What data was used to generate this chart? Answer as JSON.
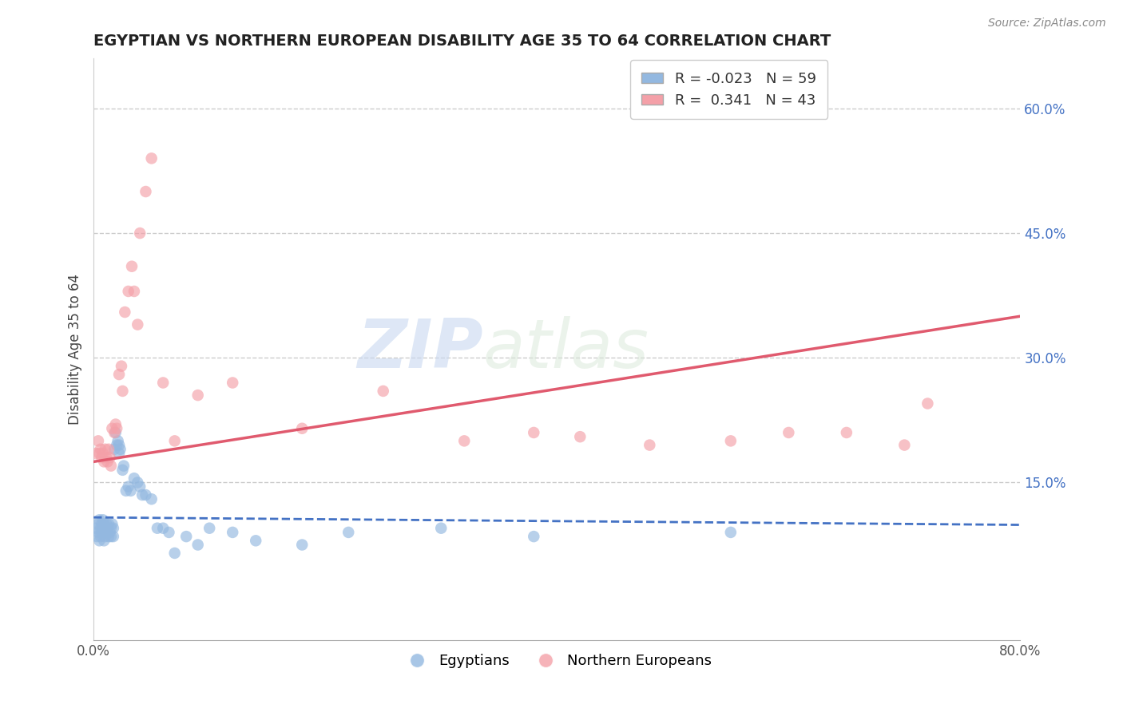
{
  "title": "EGYPTIAN VS NORTHERN EUROPEAN DISABILITY AGE 35 TO 64 CORRELATION CHART",
  "source": "Source: ZipAtlas.com",
  "xlabel": "",
  "ylabel": "Disability Age 35 to 64",
  "xlim": [
    0.0,
    0.8
  ],
  "ylim": [
    -0.04,
    0.66
  ],
  "xticks": [
    0.0,
    0.8
  ],
  "xticklabels": [
    "0.0%",
    "80.0%"
  ],
  "yticks_right": [
    0.15,
    0.3,
    0.45,
    0.6
  ],
  "ytick_labels_right": [
    "15.0%",
    "30.0%",
    "45.0%",
    "60.0%"
  ],
  "blue_color": "#93b8e0",
  "pink_color": "#f4a0a8",
  "blue_line_color": "#4472c4",
  "pink_line_color": "#e05a6e",
  "watermark_text": "ZIP",
  "watermark_text2": "atlas",
  "blue_scatter_x": [
    0.002,
    0.003,
    0.004,
    0.004,
    0.005,
    0.005,
    0.006,
    0.006,
    0.007,
    0.007,
    0.008,
    0.008,
    0.009,
    0.009,
    0.01,
    0.01,
    0.011,
    0.012,
    0.012,
    0.013,
    0.013,
    0.014,
    0.015,
    0.015,
    0.016,
    0.017,
    0.017,
    0.018,
    0.019,
    0.02,
    0.021,
    0.022,
    0.022,
    0.023,
    0.025,
    0.026,
    0.028,
    0.03,
    0.032,
    0.035,
    0.038,
    0.04,
    0.042,
    0.045,
    0.05,
    0.055,
    0.06,
    0.065,
    0.07,
    0.08,
    0.09,
    0.1,
    0.12,
    0.14,
    0.18,
    0.22,
    0.3,
    0.38,
    0.55
  ],
  "blue_scatter_y": [
    0.095,
    0.085,
    0.09,
    0.1,
    0.105,
    0.08,
    0.095,
    0.085,
    0.1,
    0.09,
    0.105,
    0.095,
    0.1,
    0.08,
    0.095,
    0.085,
    0.1,
    0.09,
    0.095,
    0.085,
    0.1,
    0.09,
    0.095,
    0.085,
    0.1,
    0.085,
    0.095,
    0.19,
    0.21,
    0.195,
    0.2,
    0.195,
    0.185,
    0.19,
    0.165,
    0.17,
    0.14,
    0.145,
    0.14,
    0.155,
    0.15,
    0.145,
    0.135,
    0.135,
    0.13,
    0.095,
    0.095,
    0.09,
    0.065,
    0.085,
    0.075,
    0.095,
    0.09,
    0.08,
    0.075,
    0.09,
    0.095,
    0.085,
    0.09
  ],
  "pink_scatter_x": [
    0.002,
    0.004,
    0.005,
    0.006,
    0.007,
    0.008,
    0.009,
    0.01,
    0.011,
    0.012,
    0.013,
    0.014,
    0.015,
    0.016,
    0.018,
    0.019,
    0.02,
    0.022,
    0.024,
    0.025,
    0.027,
    0.03,
    0.033,
    0.035,
    0.038,
    0.04,
    0.045,
    0.05,
    0.06,
    0.07,
    0.09,
    0.12,
    0.18,
    0.25,
    0.32,
    0.38,
    0.42,
    0.48,
    0.55,
    0.6,
    0.65,
    0.7,
    0.72
  ],
  "pink_scatter_y": [
    0.185,
    0.2,
    0.185,
    0.19,
    0.18,
    0.185,
    0.175,
    0.19,
    0.18,
    0.175,
    0.19,
    0.18,
    0.17,
    0.215,
    0.21,
    0.22,
    0.215,
    0.28,
    0.29,
    0.26,
    0.355,
    0.38,
    0.41,
    0.38,
    0.34,
    0.45,
    0.5,
    0.54,
    0.27,
    0.2,
    0.255,
    0.27,
    0.215,
    0.26,
    0.2,
    0.21,
    0.205,
    0.195,
    0.2,
    0.21,
    0.21,
    0.195,
    0.245
  ],
  "blue_trend_x": [
    0.0,
    0.8
  ],
  "blue_trend_y": [
    0.108,
    0.099
  ],
  "pink_trend_x": [
    0.0,
    0.8
  ],
  "pink_trend_y": [
    0.175,
    0.35
  ]
}
